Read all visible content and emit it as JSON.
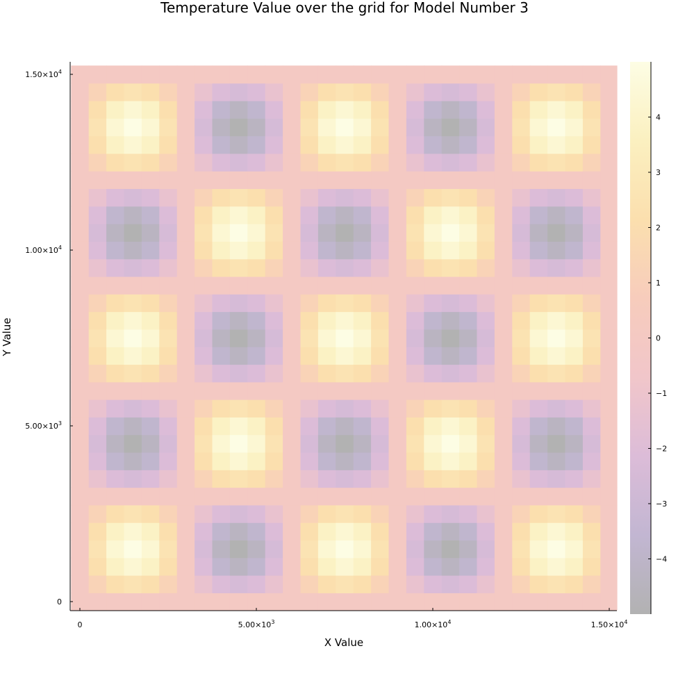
{
  "chart_data": {
    "type": "heatmap",
    "title": "Temperature Value over the grid for Model Number 3",
    "xlabel": "X Value",
    "ylabel": "Y Value",
    "xlim": [
      0,
      15000
    ],
    "ylim": [
      0,
      15000
    ],
    "x_ticks": [
      {
        "value": 0,
        "base": "0",
        "exp": ""
      },
      {
        "value": 5000,
        "base": "5.00×10",
        "exp": "3"
      },
      {
        "value": 10000,
        "base": "1.00×10",
        "exp": "4"
      },
      {
        "value": 15000,
        "base": "1.50×10",
        "exp": "4"
      }
    ],
    "y_ticks": [
      {
        "value": 0,
        "base": "0",
        "exp": ""
      },
      {
        "value": 5000,
        "base": "5.00×10",
        "exp": "3"
      },
      {
        "value": 10000,
        "base": "1.00×10",
        "exp": "4"
      },
      {
        "value": 15000,
        "base": "1.50×10",
        "exp": "4"
      }
    ],
    "grid_size": 31,
    "cell_spacing": 500,
    "cell_value_pattern": "5 × sin(π·x/3000) × sin(π·y/3000) with alternating sign by block",
    "value_range": [
      -5,
      5
    ],
    "colormap": [
      "#b2b2b2",
      "#c2b6d2",
      "#dcbcd8",
      "#f1c6ca",
      "#f7ccbc",
      "#fbdfae",
      "#fbf0c0",
      "#fdfde4"
    ],
    "colorbar_ticks": [
      "4",
      "3",
      "2",
      "1",
      "0",
      "−1",
      "−2",
      "−3",
      "−4"
    ],
    "colorbar_tick_values": [
      4,
      3,
      2,
      1,
      0,
      -1,
      -2,
      -3,
      -4
    ],
    "grid": false,
    "legend": "colorbar-right"
  }
}
